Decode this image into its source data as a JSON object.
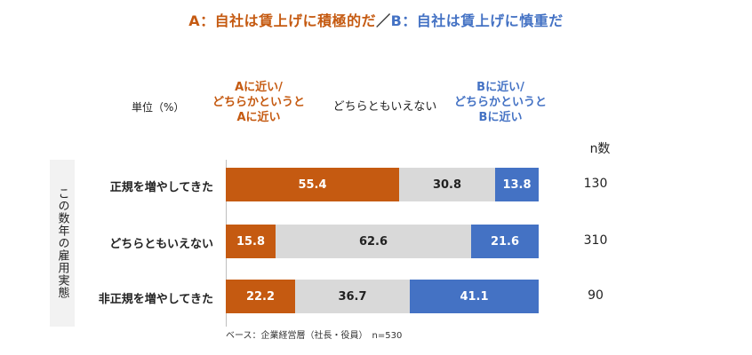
{
  "title": {
    "a": "A：自社は賃上げに積極的だ",
    "sep": "／",
    "b": "B：自社は賃上げに慎重だ"
  },
  "unit_label": "単位（%）",
  "headers": {
    "a": [
      "Aに近い/",
      "どちらかというと",
      "Aに近い"
    ],
    "mid": "どちらともいえない",
    "b": [
      "Bに近い/",
      "どちらかというと",
      "Bに近い"
    ],
    "n": "n数"
  },
  "side_label": "この数年の雇用実態",
  "base_note": "ベース：企業経営層（社長・役員）　n=530",
  "colors": {
    "a": "#c55a11",
    "mid": "#d9d9d9",
    "b": "#4472c4"
  },
  "chart_data": {
    "type": "bar",
    "stacked": true,
    "orientation": "horizontal",
    "categories": [
      "正規を増やしてきた",
      "どちらともいえない",
      "非正規を増やしてきた"
    ],
    "series": [
      {
        "name": "Aに近い/どちらかというとAに近い",
        "values": [
          55.4,
          15.8,
          22.2
        ]
      },
      {
        "name": "どちらともいえない",
        "values": [
          30.8,
          62.6,
          36.7
        ]
      },
      {
        "name": "Bに近い/どちらかというとBに近い",
        "values": [
          13.8,
          21.6,
          41.1
        ]
      }
    ],
    "n": [
      130,
      310,
      90
    ],
    "xlim": [
      0,
      100
    ]
  }
}
